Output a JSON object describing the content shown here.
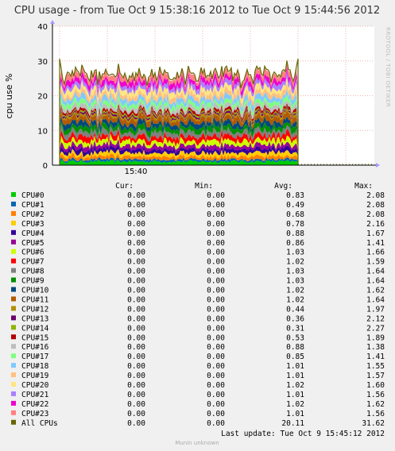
{
  "chart_data": {
    "type": "area",
    "title": "CPU usage - from Tue Oct  9 15:38:16 2012 to Tue Oct  9 15:44:56 2012",
    "ylabel": "cpu use %",
    "ylim": [
      0,
      40
    ],
    "yticks": [
      "0",
      "10",
      "20",
      "30",
      "40"
    ],
    "x_tick_labels": [
      "15:40"
    ],
    "grid": true,
    "stacked": true,
    "side_text": "RRDTOOL / TOBI OETIKER",
    "columns": [
      "Cur:",
      "Min:",
      "Avg:",
      "Max:"
    ],
    "series": [
      {
        "name": "CPU#0",
        "color": "#00cc00",
        "cur": "0.00",
        "min": "0.00",
        "avg": "0.83",
        "max": "2.08"
      },
      {
        "name": "CPU#1",
        "color": "#0066b3",
        "cur": "0.00",
        "min": "0.00",
        "avg": "0.49",
        "max": "2.08"
      },
      {
        "name": "CPU#2",
        "color": "#ff8000",
        "cur": "0.00",
        "min": "0.00",
        "avg": "0.68",
        "max": "2.08"
      },
      {
        "name": "CPU#3",
        "color": "#ffcc00",
        "cur": "0.00",
        "min": "0.00",
        "avg": "0.78",
        "max": "2.16"
      },
      {
        "name": "CPU#4",
        "color": "#330099",
        "cur": "0.00",
        "min": "0.00",
        "avg": "0.88",
        "max": "1.67"
      },
      {
        "name": "CPU#5",
        "color": "#990099",
        "cur": "0.00",
        "min": "0.00",
        "avg": "0.86",
        "max": "1.41"
      },
      {
        "name": "CPU#6",
        "color": "#ccff00",
        "cur": "0.00",
        "min": "0.00",
        "avg": "1.03",
        "max": "1.66"
      },
      {
        "name": "CPU#7",
        "color": "#ff0000",
        "cur": "0.00",
        "min": "0.00",
        "avg": "1.02",
        "max": "1.59"
      },
      {
        "name": "CPU#8",
        "color": "#808080",
        "cur": "0.00",
        "min": "0.00",
        "avg": "1.03",
        "max": "1.64"
      },
      {
        "name": "CPU#9",
        "color": "#008f00",
        "cur": "0.00",
        "min": "0.00",
        "avg": "1.03",
        "max": "1.64"
      },
      {
        "name": "CPU#10",
        "color": "#00487d",
        "cur": "0.00",
        "min": "0.00",
        "avg": "1.02",
        "max": "1.62"
      },
      {
        "name": "CPU#11",
        "color": "#b35a00",
        "cur": "0.00",
        "min": "0.00",
        "avg": "1.02",
        "max": "1.64"
      },
      {
        "name": "CPU#12",
        "color": "#b38f00",
        "cur": "0.00",
        "min": "0.00",
        "avg": "0.44",
        "max": "1.97"
      },
      {
        "name": "CPU#13",
        "color": "#6b006b",
        "cur": "0.00",
        "min": "0.00",
        "avg": "0.36",
        "max": "2.12"
      },
      {
        "name": "CPU#14",
        "color": "#8fb300",
        "cur": "0.00",
        "min": "0.00",
        "avg": "0.31",
        "max": "2.27"
      },
      {
        "name": "CPU#15",
        "color": "#b30000",
        "cur": "0.00",
        "min": "0.00",
        "avg": "0.53",
        "max": "1.89"
      },
      {
        "name": "CPU#16",
        "color": "#bebebe",
        "cur": "0.00",
        "min": "0.00",
        "avg": "0.88",
        "max": "1.38"
      },
      {
        "name": "CPU#17",
        "color": "#80ff80",
        "cur": "0.00",
        "min": "0.00",
        "avg": "0.85",
        "max": "1.41"
      },
      {
        "name": "CPU#18",
        "color": "#80c9ff",
        "cur": "0.00",
        "min": "0.00",
        "avg": "1.01",
        "max": "1.55"
      },
      {
        "name": "CPU#19",
        "color": "#ffc080",
        "cur": "0.00",
        "min": "0.00",
        "avg": "1.01",
        "max": "1.57"
      },
      {
        "name": "CPU#20",
        "color": "#ffe680",
        "cur": "0.00",
        "min": "0.00",
        "avg": "1.02",
        "max": "1.60"
      },
      {
        "name": "CPU#21",
        "color": "#aa80ff",
        "cur": "0.00",
        "min": "0.00",
        "avg": "1.01",
        "max": "1.56"
      },
      {
        "name": "CPU#22",
        "color": "#ee00cc",
        "cur": "0.00",
        "min": "0.00",
        "avg": "1.02",
        "max": "1.62"
      },
      {
        "name": "CPU#23",
        "color": "#ff8080",
        "cur": "0.00",
        "min": "0.00",
        "avg": "1.01",
        "max": "1.56"
      },
      {
        "name": "All CPUs",
        "color": "#666600",
        "cur": "0.00",
        "min": "0.00",
        "avg": "20.11",
        "max": "31.62"
      }
    ]
  },
  "footer": {
    "last_update": "Last update:  Tue Oct   9 15:45:12 2012",
    "munin": "Munin unknown"
  }
}
